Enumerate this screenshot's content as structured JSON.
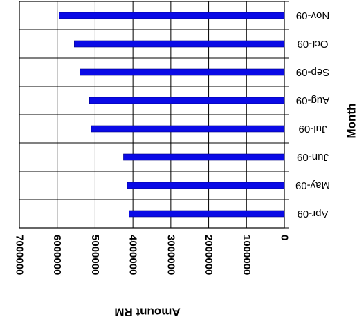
{
  "chart_data": {
    "type": "bar",
    "orientation": "horizontal",
    "display": "rotated 180 degrees",
    "categories": [
      "Apr-09",
      "May-09",
      "Jun-09",
      "Jul-09",
      "Aug-09",
      "Sep-09",
      "Oct-09",
      "Nov-09"
    ],
    "values": [
      4100000,
      4150000,
      4250000,
      5100000,
      5150000,
      5400000,
      5550000,
      5950000
    ],
    "xlabel": "Month",
    "ylabel": "Amount RM",
    "ylim": [
      0,
      7000000
    ],
    "yticks": [
      "0",
      "1000000",
      "2000000",
      "3000000",
      "4000000",
      "5000000",
      "6000000",
      "7000000"
    ],
    "grid": true,
    "bar_color": "#0a0ae6"
  }
}
